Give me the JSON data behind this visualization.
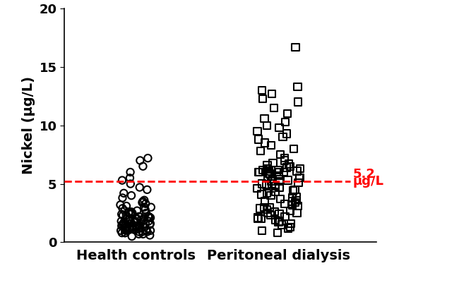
{
  "group1_label": "Health controls",
  "group2_label": "Peritoneal dialysis",
  "ylabel": "Nickel (μg/L)",
  "ylim": [
    0,
    20
  ],
  "yticks": [
    0,
    5,
    10,
    15,
    20
  ],
  "ref_line_y": 5.2,
  "ref_line_label_1": "5.2",
  "ref_line_label_2": "μg/L",
  "ref_line_color": "#ff0000",
  "group1_x_center": 1.0,
  "group2_x_center": 2.1,
  "xlim": [
    0.45,
    2.85
  ],
  "group1_data": [
    0.5,
    0.6,
    0.7,
    0.7,
    0.8,
    0.8,
    0.8,
    0.9,
    0.9,
    0.9,
    1.0,
    1.0,
    1.0,
    1.0,
    1.0,
    1.1,
    1.1,
    1.1,
    1.1,
    1.2,
    1.2,
    1.2,
    1.2,
    1.3,
    1.3,
    1.3,
    1.3,
    1.4,
    1.4,
    1.4,
    1.5,
    1.5,
    1.5,
    1.5,
    1.6,
    1.6,
    1.6,
    1.6,
    1.7,
    1.7,
    1.7,
    1.8,
    1.8,
    1.8,
    1.9,
    1.9,
    2.0,
    2.0,
    2.0,
    2.0,
    2.1,
    2.1,
    2.1,
    2.2,
    2.2,
    2.2,
    2.3,
    2.3,
    2.4,
    2.4,
    2.5,
    2.5,
    2.5,
    2.6,
    2.6,
    2.7,
    2.7,
    2.8,
    2.9,
    3.0,
    3.0,
    3.1,
    3.2,
    3.3,
    3.4,
    3.5,
    3.6,
    3.8,
    4.0,
    4.2,
    4.5,
    4.7,
    5.0,
    5.3,
    5.5,
    6.0,
    6.5,
    7.0,
    7.2
  ],
  "group2_data": [
    0.8,
    1.0,
    1.2,
    1.3,
    1.5,
    1.6,
    1.7,
    1.8,
    1.9,
    2.0,
    2.0,
    2.1,
    2.2,
    2.3,
    2.4,
    2.5,
    2.5,
    2.6,
    2.7,
    2.8,
    2.9,
    3.0,
    3.0,
    3.1,
    3.2,
    3.3,
    3.4,
    3.5,
    3.5,
    3.6,
    3.7,
    3.8,
    3.9,
    4.0,
    4.1,
    4.2,
    4.3,
    4.4,
    4.5,
    4.6,
    4.7,
    4.8,
    4.9,
    5.0,
    5.0,
    5.1,
    5.2,
    5.2,
    5.3,
    5.4,
    5.5,
    5.5,
    5.6,
    5.7,
    5.8,
    5.9,
    6.0,
    6.0,
    6.0,
    6.0,
    6.1,
    6.1,
    6.1,
    6.2,
    6.2,
    6.3,
    6.3,
    6.4,
    6.5,
    6.6,
    6.7,
    6.8,
    7.0,
    7.2,
    7.5,
    7.8,
    8.0,
    8.3,
    8.5,
    8.8,
    9.0,
    9.3,
    9.5,
    9.8,
    10.0,
    10.3,
    10.6,
    11.0,
    11.5,
    12.0,
    12.3,
    12.7,
    13.0,
    13.3,
    16.7
  ],
  "marker_size": 55,
  "linewidth": 1.5,
  "jitter_seed": 42,
  "background_color": "#ffffff",
  "tick_fontsize": 13,
  "label_fontsize": 14,
  "ref_label_fontsize": 13
}
